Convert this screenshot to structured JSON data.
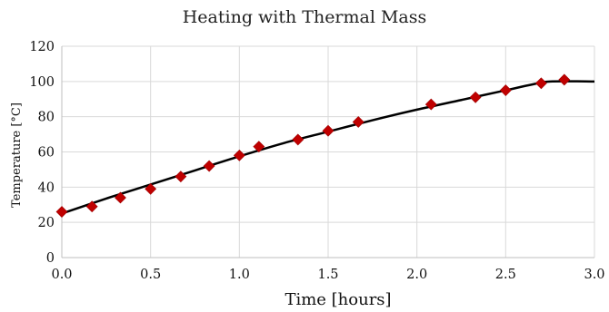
{
  "chart_data": {
    "type": "scatter",
    "title": "Heating with Thermal Mass",
    "xlabel": "Time [hours]",
    "ylabel": "Temperature [°C]",
    "xlim": [
      0,
      3
    ],
    "ylim": [
      0,
      120
    ],
    "x_ticks": [
      "0.0",
      "0.5",
      "1.0",
      "1.5",
      "2.0",
      "2.5",
      "3.0"
    ],
    "y_ticks": [
      "0",
      "20",
      "40",
      "60",
      "80",
      "100",
      "120"
    ],
    "grid": true,
    "legend": "none",
    "series": [
      {
        "kind": "markers",
        "marker": "diamond",
        "color": "#c00000",
        "x": [
          0.0,
          0.17,
          0.33,
          0.5,
          0.67,
          0.83,
          1.0,
          1.11,
          1.33,
          1.5,
          1.67,
          2.08,
          2.33,
          2.5,
          2.7,
          2.83
        ],
        "y": [
          26,
          29,
          34,
          39,
          46,
          52,
          58,
          63,
          67,
          72,
          77,
          87,
          91,
          95,
          99,
          101
        ]
      },
      {
        "kind": "line",
        "color": "#000000",
        "x": [
          0.0,
          0.25,
          0.5,
          0.75,
          1.0,
          1.25,
          1.5,
          1.75,
          2.0,
          2.25,
          2.5,
          2.65,
          2.75,
          3.0
        ],
        "y": [
          25,
          33.5,
          41.5,
          49.5,
          57.5,
          65,
          71.5,
          78,
          84,
          89.5,
          95,
          98.3,
          100,
          100
        ]
      }
    ]
  }
}
